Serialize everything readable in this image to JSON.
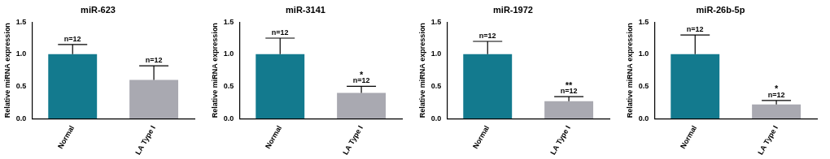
{
  "chart_data": [
    {
      "type": "bar",
      "title": "miR-623",
      "y_label": "Relative miRNA expression",
      "categories": [
        "Normal",
        "LA Type I"
      ],
      "values": [
        1.0,
        0.6
      ],
      "errors": [
        0.15,
        0.22
      ],
      "colors": [
        "#137a8e",
        "#a9a9b1"
      ],
      "ylim": [
        0,
        1.5
      ],
      "yticks": [
        {
          "value": 0,
          "label": "0.0"
        },
        {
          "value": 0.5,
          "label": "0.5"
        },
        {
          "value": 1,
          "label": "1.0"
        },
        {
          "value": 1.5,
          "label": "1.5"
        }
      ],
      "grid": false,
      "annotations": [
        {
          "category": "Normal",
          "text": "n=12"
        },
        {
          "category": "LA Type I",
          "text": "n=12"
        }
      ]
    },
    {
      "type": "bar",
      "title": "miR-3141",
      "y_label": "Relative miRNA expression",
      "categories": [
        "Normal",
        "LA Type I"
      ],
      "values": [
        1.0,
        0.4
      ],
      "errors": [
        0.25,
        0.1
      ],
      "colors": [
        "#137a8e",
        "#a9a9b1"
      ],
      "ylim": [
        0,
        1.5
      ],
      "yticks": [
        {
          "value": 0,
          "label": "0.0"
        },
        {
          "value": 0.5,
          "label": "0.5"
        },
        {
          "value": 1,
          "label": "1.0"
        },
        {
          "value": 1.5,
          "label": "1.5"
        }
      ],
      "grid": false,
      "annotations": [
        {
          "category": "Normal",
          "text": "n=12"
        },
        {
          "category": "LA Type I",
          "text": "n=12"
        },
        {
          "category": "LA Type I",
          "text": "*"
        }
      ]
    },
    {
      "type": "bar",
      "title": "miR-1972",
      "y_label": "Relative miRNA expression",
      "categories": [
        "Normal",
        "LA Type I"
      ],
      "values": [
        1.0,
        0.27
      ],
      "errors": [
        0.2,
        0.07
      ],
      "colors": [
        "#137a8e",
        "#a9a9b1"
      ],
      "ylim": [
        0,
        1.5
      ],
      "yticks": [
        {
          "value": 0,
          "label": "0.0"
        },
        {
          "value": 0.5,
          "label": "0.5"
        },
        {
          "value": 1,
          "label": "1.0"
        },
        {
          "value": 1.5,
          "label": "1.5"
        }
      ],
      "grid": false,
      "annotations": [
        {
          "category": "Normal",
          "text": "n=12"
        },
        {
          "category": "LA Type I",
          "text": "n=12"
        },
        {
          "category": "LA Type I",
          "text": "**"
        }
      ]
    },
    {
      "type": "bar",
      "title": "miR-26b-5p",
      "y_label": "Relative miRNA expression",
      "categories": [
        "Normal",
        "LA Type I"
      ],
      "values": [
        1.0,
        0.22
      ],
      "errors": [
        0.3,
        0.06
      ],
      "colors": [
        "#137a8e",
        "#a9a9b1"
      ],
      "ylim": [
        0,
        1.5
      ],
      "yticks": [
        {
          "value": 0,
          "label": "0.0"
        },
        {
          "value": 0.5,
          "label": "0.5"
        },
        {
          "value": 1,
          "label": "1.0"
        },
        {
          "value": 1.5,
          "label": "1.5"
        }
      ],
      "grid": false,
      "annotations": [
        {
          "category": "Normal",
          "text": "n=12"
        },
        {
          "category": "LA Type I",
          "text": "n=12"
        },
        {
          "category": "LA Type I",
          "text": "*"
        }
      ]
    }
  ]
}
